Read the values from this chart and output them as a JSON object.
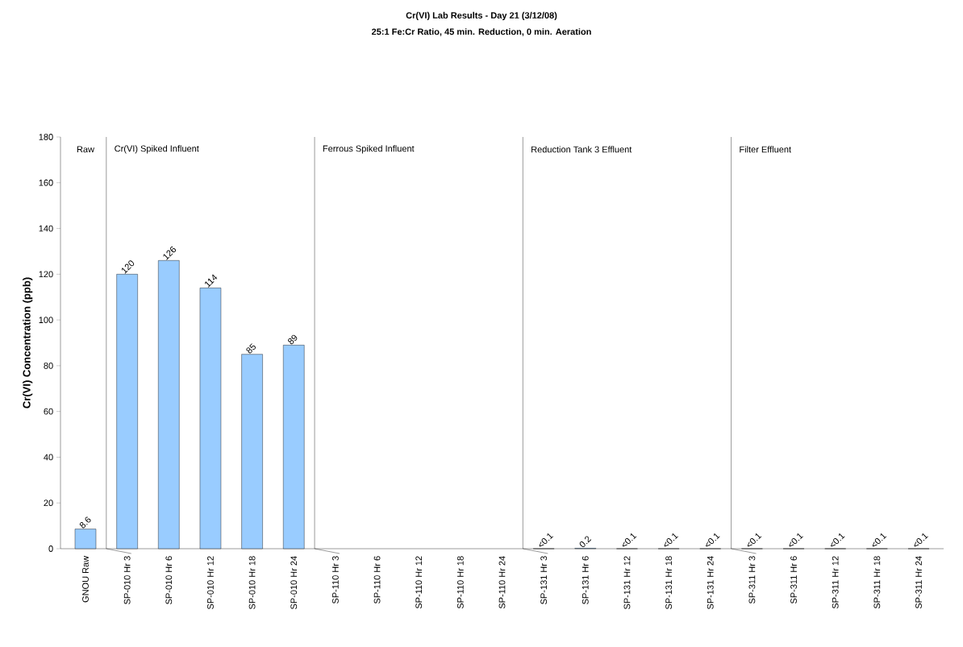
{
  "chart_data": {
    "type": "bar",
    "title": "Cr(VI) Lab Results - Day 21 (3/12/08)",
    "subtitle": "25:1 Fe:Cr Ratio, 45 min. Reduction, 0 min. Aeration",
    "ylabel": "Cr(VI) Concentration (ppb)",
    "categories": [
      "GNOU Raw",
      "SP-010 Hr 3",
      "SP-010 Hr 6",
      "SP-010 Hr 12",
      "SP-010 Hr 18",
      "SP-010 Hr 24",
      "SP-110 Hr 3",
      "SP-110 Hr 6",
      "SP-110 Hr 12",
      "SP-110 Hr 18",
      "SP-110 Hr 24",
      "SP-131 Hr 3",
      "SP-131 Hr 6",
      "SP-131 Hr 12",
      "SP-131 Hr 18",
      "SP-131 Hr 24",
      "SP-311 Hr 3",
      "SP-311 Hr 6",
      "SP-311 Hr 12",
      "SP-311 Hr 18",
      "SP-311 Hr 24"
    ],
    "values": [
      8.6,
      120,
      126,
      114,
      85,
      89,
      null,
      null,
      null,
      null,
      null,
      0,
      0.2,
      0,
      0,
      0,
      0,
      0,
      0,
      0,
      0
    ],
    "value_labels": [
      "8.6",
      "120",
      "126",
      "114",
      "85",
      "89",
      null,
      null,
      null,
      null,
      null,
      "<0.1",
      "0.2",
      "<0.1",
      "<0.1",
      "<0.1",
      "<0.1",
      "<0.1",
      "<0.1",
      "<0.1",
      "<0.1"
    ],
    "color": "#99ccff",
    "ylim": [
      0,
      180
    ],
    "yticks": [
      0,
      20,
      40,
      60,
      80,
      100,
      120,
      140,
      160,
      180
    ],
    "annotations": [
      "Raw",
      "Cr(VI) Spiked Influent",
      "Ferrous Spiked Influent",
      "Reduction Tank 3 Effluent",
      "Filter Effluent"
    ],
    "grid": false
  }
}
